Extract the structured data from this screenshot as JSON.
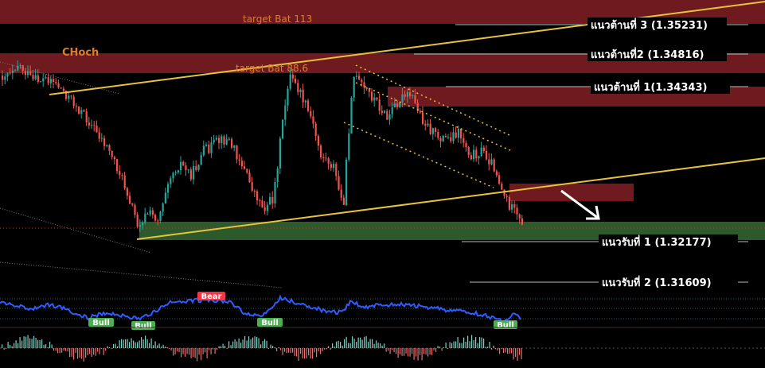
{
  "chart_data": {
    "type": "candlestick",
    "title": "",
    "colors": {
      "background": "#000000",
      "resistance_zone": "#6e1a1e",
      "support_zone": "#2c5a2a",
      "bull_candle": "#26a69a",
      "bear_candle": "#ef5350",
      "trendline": "#e8c23a",
      "channel": "#e8c23a",
      "level_line": "#bbbbbb",
      "label_text": "#ffffff",
      "target_text": "#e07b27",
      "oscillator_line": "#2f5cff",
      "bull_tag": "#4caf50",
      "bear_tag": "#f23645",
      "arrow": "#ffffff"
    },
    "levels": [
      {
        "kind": "resistance",
        "label": "แนวต้านที่ 3 (1.35231)",
        "value": 1.35231
      },
      {
        "kind": "resistance",
        "label": "แนวต้านที่2 (1.34816)",
        "value": 1.34816
      },
      {
        "kind": "resistance",
        "label": "แนวต้านที่ 1(1.34343)",
        "value": 1.34343
      },
      {
        "kind": "support",
        "label": "แนวรับที่ 1 (1.32177)",
        "value": 1.32177
      },
      {
        "kind": "support",
        "label": "แนวรับที่ 2 (1.31609)",
        "value": 1.31609
      }
    ],
    "annotations": {
      "target_1": "target Bat 113",
      "target_2": "target Bat 88.6",
      "choch": "CHoch"
    },
    "oscillator_tags": {
      "bull": "Bull",
      "bear": "Bear"
    },
    "trend_hint": "price broke below the ascending trendline, arrow points down-right"
  }
}
